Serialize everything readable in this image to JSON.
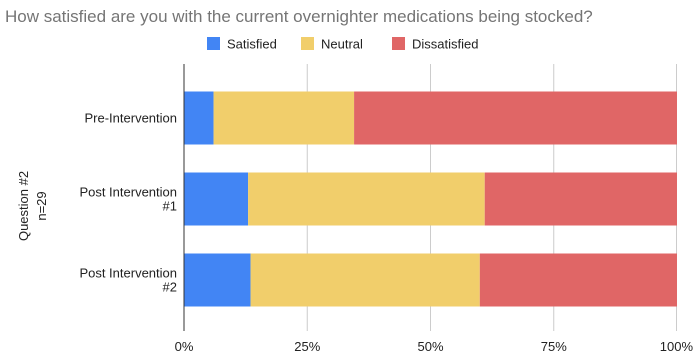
{
  "chart_data": {
    "type": "bar",
    "orientation": "horizontal",
    "stacked": true,
    "title": "How satisfied are you with the current overnighter medications being stocked?",
    "ylabel": [
      "Question #2",
      "n=29"
    ],
    "xlabel": "",
    "categories": [
      [
        "Pre-Intervention"
      ],
      [
        "Post Intervention",
        "#1"
      ],
      [
        "Post Intervention",
        "#2"
      ]
    ],
    "series": [
      {
        "name": "Satisfied",
        "color": "#4285f4",
        "values": [
          6,
          13,
          13.5
        ]
      },
      {
        "name": "Neutral",
        "color": "#f1ce6b",
        "values": [
          28.5,
          48,
          46.5
        ]
      },
      {
        "name": "Dissatisfied",
        "color": "#e06666",
        "values": [
          65.5,
          39,
          40
        ]
      }
    ],
    "xlim": [
      0,
      100
    ],
    "xticks": [
      0,
      25,
      50,
      75,
      100
    ],
    "tick_labels": [
      "0%",
      "25%",
      "50%",
      "75%",
      "100%"
    ],
    "grid": true,
    "legend_position": "top-center"
  }
}
